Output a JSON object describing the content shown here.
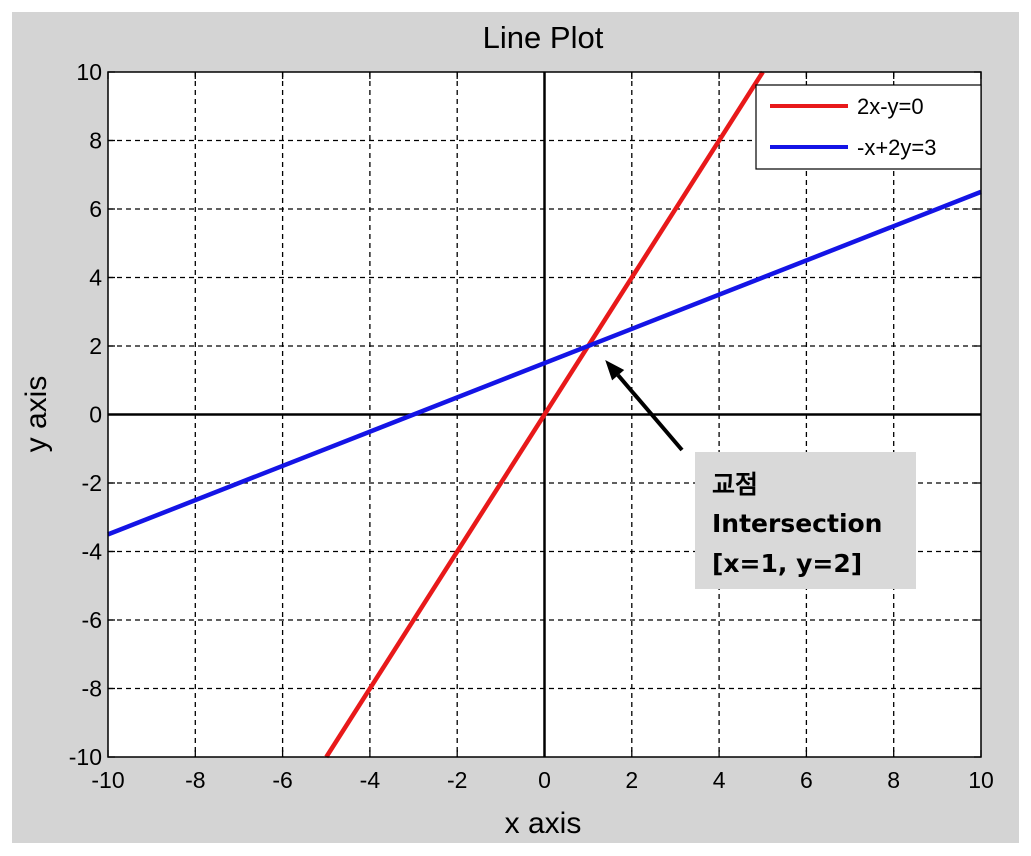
{
  "chart_data": {
    "type": "line",
    "title": "Line Plot",
    "xlabel": "x axis",
    "ylabel": "y axis",
    "xlim": [
      -10,
      10
    ],
    "ylim": [
      -10,
      10
    ],
    "xticks": [
      -10,
      -8,
      -6,
      -4,
      -2,
      0,
      2,
      4,
      6,
      8,
      10
    ],
    "yticks": [
      -10,
      -8,
      -6,
      -4,
      -2,
      0,
      2,
      4,
      6,
      8,
      10
    ],
    "grid": true,
    "legend_position": "top-right",
    "series": [
      {
        "name": "2x-y=0",
        "color": "#e8191a",
        "x": [
          -5,
          5
        ],
        "y": [
          -10,
          10
        ]
      },
      {
        "name": "-x+2y=3",
        "color": "#1414e6",
        "x": [
          -10,
          10
        ],
        "y": [
          -3.5,
          6.5
        ]
      }
    ],
    "annotation": {
      "lines": [
        "교점",
        "Intersection",
        "[x=1, y=2]"
      ],
      "point": [
        1,
        2
      ],
      "box_color": "#d9d9d9"
    }
  }
}
